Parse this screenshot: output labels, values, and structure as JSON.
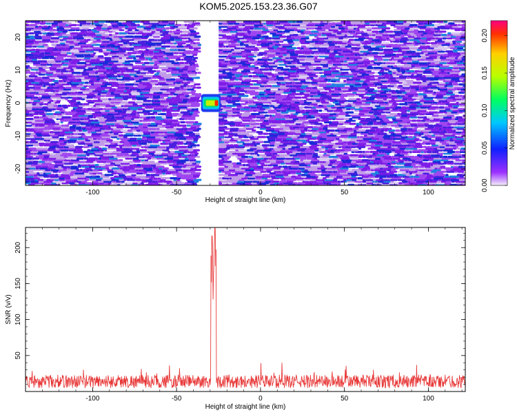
{
  "figure": {
    "title": "KOM5.2025.153.23.36.G07"
  },
  "chart_data": [
    {
      "type": "heatmap",
      "xlabel": "Height of straight line (km)",
      "ylabel": "Frequency (Hz)",
      "xlim": [
        -140,
        122
      ],
      "ylim": [
        -25,
        25
      ],
      "xticks": [
        -100,
        -50,
        0,
        50,
        100
      ],
      "yticks": [
        -20,
        -10,
        0,
        10,
        20
      ],
      "gap_x": [
        -35,
        -25
      ],
      "peak": {
        "x": -26,
        "y": 0,
        "value": 0.22
      },
      "colorbar": {
        "label": "Normalized spectral amplitude",
        "range": [
          0,
          0.22
        ],
        "ticks": [
          0,
          0.05,
          0.1,
          0.15,
          0.2
        ],
        "tick_labels": [
          "0.00",
          "0.05",
          "0.10",
          "0.15",
          "0.20"
        ]
      }
    },
    {
      "type": "line",
      "xlabel": "Height of straight line (km)",
      "ylabel": "SNR (v/v)",
      "xlim": [
        -140,
        122
      ],
      "ylim": [
        0,
        228
      ],
      "xticks": [
        -100,
        -50,
        0,
        50,
        100
      ],
      "yticks": [
        50,
        100,
        150,
        200
      ],
      "color": "#e83a3a",
      "noise_level": 15,
      "spike_x": [
        -29.5,
        -26.5
      ],
      "spike_peaks": [
        {
          "x": -28.8,
          "y": 220
        },
        {
          "x": -27.2,
          "y": 228
        }
      ]
    }
  ]
}
